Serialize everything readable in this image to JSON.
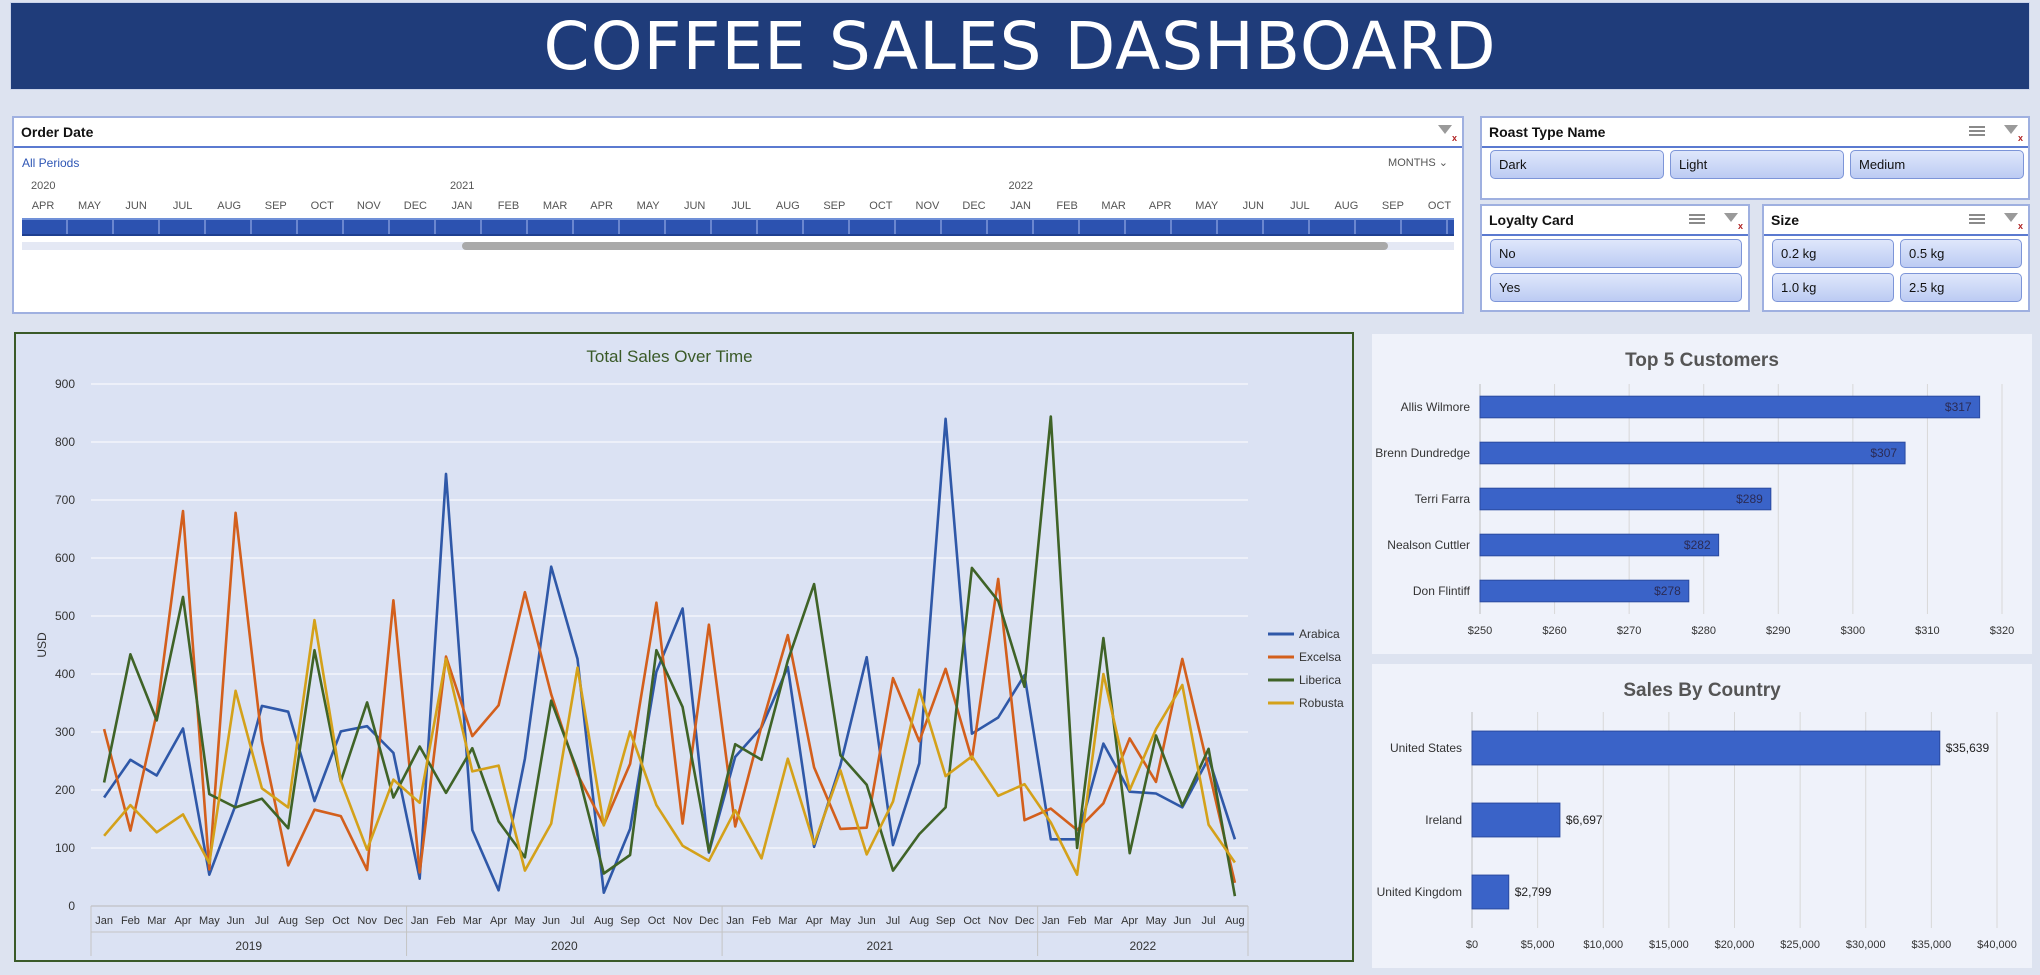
{
  "dashboard_title": "COFFEE SALES DASHBOARD",
  "colors": {
    "banner": "#1f3c7a",
    "tile_blue": "#2c52b0",
    "bar_blue": "#3a63c8"
  },
  "slicers": {
    "order_date": {
      "title": "Order Date",
      "periods_label": "All Periods",
      "level_label": "MONTHS",
      "years": [
        "2020",
        "2021",
        "2022"
      ],
      "months": [
        "APR",
        "MAY",
        "JUN",
        "JUL",
        "AUG",
        "SEP",
        "OCT",
        "NOV",
        "DEC",
        "JAN",
        "FEB",
        "MAR",
        "APR",
        "MAY",
        "JUN",
        "JUL",
        "AUG",
        "SEP",
        "OCT",
        "NOV",
        "DEC",
        "JAN",
        "FEB",
        "MAR",
        "APR",
        "MAY",
        "JUN",
        "JUL",
        "AUG",
        "SEP",
        "OCT"
      ]
    },
    "roast_type": {
      "title": "Roast Type Name",
      "items": [
        "Dark",
        "Light",
        "Medium"
      ]
    },
    "loyalty_card": {
      "title": "Loyalty Card",
      "items": [
        "No",
        "Yes"
      ]
    },
    "size": {
      "title": "Size",
      "items": [
        "0.2 kg",
        "0.5 kg",
        "1.0 kg",
        "2.5 kg"
      ]
    }
  },
  "chart_data": [
    {
      "type": "line",
      "title": "Total Sales Over Time",
      "ylabel": "USD",
      "xlabel": "",
      "ylim": [
        0,
        900
      ],
      "yticks": [
        0,
        100,
        200,
        300,
        400,
        500,
        600,
        700,
        800,
        900
      ],
      "grid": true,
      "legend": "right",
      "x_months": [
        "Jan",
        "Feb",
        "Mar",
        "Apr",
        "May",
        "Jun",
        "Jul",
        "Aug",
        "Sep",
        "Oct",
        "Nov",
        "Dec",
        "Jan",
        "Feb",
        "Mar",
        "Apr",
        "May",
        "Jun",
        "Jul",
        "Aug",
        "Sep",
        "Oct",
        "Nov",
        "Dec",
        "Jan",
        "Feb",
        "Mar",
        "Apr",
        "May",
        "Jun",
        "Jul",
        "Aug",
        "Sep",
        "Oct",
        "Nov",
        "Dec",
        "Jan",
        "Feb",
        "Mar",
        "Apr",
        "May",
        "Jun",
        "Jul",
        "Aug"
      ],
      "x_years": [
        "2019",
        "2020",
        "2021",
        "2022"
      ],
      "series": [
        {
          "name": "Arabica",
          "color": "#2f58a8",
          "values": [
            187,
            252,
            225,
            306,
            54,
            174,
            345,
            335,
            181,
            301,
            310,
            264,
            47,
            745,
            131,
            27,
            254,
            585,
            426,
            23,
            133,
            404,
            513,
            92,
            257,
            308,
            412,
            102,
            243,
            429,
            105,
            246,
            840,
            297,
            325,
            398,
            115,
            115,
            280,
            197,
            194,
            170,
            255,
            115
          ]
        },
        {
          "name": "Excelsa",
          "color": "#d35f1c",
          "values": [
            305,
            130,
            332,
            681,
            63,
            678,
            285,
            70,
            166,
            155,
            62,
            527,
            58,
            430,
            293,
            346,
            541,
            365,
            227,
            140,
            245,
            523,
            142,
            485,
            137,
            310,
            467,
            239,
            133,
            135,
            393,
            284,
            409,
            253,
            564,
            148,
            168,
            131,
            177,
            289,
            214,
            426,
            235,
            40
          ]
        },
        {
          "name": "Liberica",
          "color": "#3f6327",
          "values": [
            213,
            434,
            320,
            533,
            193,
            170,
            185,
            134,
            441,
            215,
            351,
            187,
            275,
            195,
            272,
            146,
            84,
            354,
            233,
            56,
            88,
            441,
            343,
            94,
            279,
            252,
            423,
            555,
            260,
            209,
            61,
            124,
            170,
            583,
            526,
            378,
            844,
            100,
            462,
            91,
            294,
            173,
            271,
            17
          ]
        },
        {
          "name": "Robusta",
          "color": "#d4a11a",
          "values": [
            121,
            174,
            127,
            158,
            74,
            371,
            203,
            170,
            493,
            216,
            97,
            218,
            178,
            426,
            232,
            242,
            61,
            142,
            411,
            139,
            301,
            174,
            104,
            78,
            165,
            82,
            254,
            107,
            234,
            89,
            180,
            373,
            224,
            258,
            190,
            210,
            144,
            54,
            400,
            200,
            305,
            381,
            140,
            75
          ]
        }
      ]
    },
    {
      "type": "bar",
      "orientation": "horizontal",
      "title": "Top 5 Customers",
      "categories": [
        "Allis Wilmore",
        "Brenn Dundredge",
        "Terri Farra",
        "Nealson Cuttler",
        "Don Flintiff"
      ],
      "values": [
        317,
        307,
        289,
        282,
        278
      ],
      "labels": [
        "$317",
        "$307",
        "$289",
        "$282",
        "$278"
      ],
      "xlim": [
        250,
        320
      ],
      "xticks": [
        "$250",
        "$260",
        "$270",
        "$280",
        "$290",
        "$300",
        "$310",
        "$320"
      ]
    },
    {
      "type": "bar",
      "orientation": "horizontal",
      "title": "Sales By Country",
      "categories": [
        "United States",
        "Ireland",
        "United Kingdom"
      ],
      "values": [
        35639,
        6697,
        2799
      ],
      "labels": [
        "$35,639",
        "$6,697",
        "$2,799"
      ],
      "xlim": [
        0,
        40000
      ],
      "xticks": [
        "$0",
        "$5,000",
        "$10,000",
        "$15,000",
        "$20,000",
        "$25,000",
        "$30,000",
        "$35,000",
        "$40,000"
      ]
    }
  ]
}
